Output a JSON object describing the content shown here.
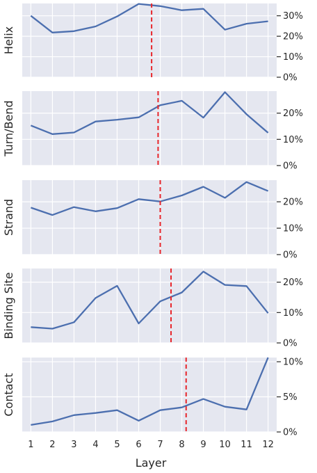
{
  "figure": {
    "xlabel": "Layer",
    "colors": {
      "panel_bg": "#e5e7f0",
      "grid": "#ffffff",
      "line": "#4c6faf",
      "marker": "#e8262b",
      "text": "#262626"
    }
  },
  "chart_data": [
    {
      "type": "line",
      "ylabel": "Helix",
      "x": [
        1,
        2,
        3,
        4,
        5,
        6,
        7,
        8,
        9,
        10,
        11,
        12
      ],
      "values": [
        30.0,
        21.8,
        22.5,
        24.8,
        29.7,
        35.8,
        34.7,
        32.7,
        33.4,
        23.2,
        26.1,
        27.3
      ],
      "ylim": [
        0,
        36
      ],
      "yticks": [
        0,
        10,
        20,
        30
      ],
      "ytick_labels": [
        "0%",
        "10%",
        "20%",
        "30%"
      ],
      "y_axis_side": "right",
      "grid": true,
      "vline": 6.6
    },
    {
      "type": "line",
      "ylabel": "Turn/Bend",
      "x": [
        1,
        2,
        3,
        4,
        5,
        6,
        7,
        8,
        9,
        10,
        11,
        12
      ],
      "values": [
        15.3,
        12.0,
        12.6,
        16.8,
        17.5,
        18.4,
        23.0,
        24.7,
        18.3,
        28.0,
        19.6,
        12.5
      ],
      "ylim": [
        0,
        28.4
      ],
      "yticks": [
        0,
        10,
        20
      ],
      "ytick_labels": [
        "0%",
        "10%",
        "20%"
      ],
      "y_axis_side": "right",
      "grid": true,
      "vline": 6.9
    },
    {
      "type": "line",
      "ylabel": "Strand",
      "x": [
        1,
        2,
        3,
        4,
        5,
        6,
        7,
        8,
        9,
        10,
        11,
        12
      ],
      "values": [
        17.8,
        15.0,
        18.0,
        16.4,
        17.6,
        21.0,
        20.1,
        22.4,
        25.7,
        21.5,
        27.5,
        24.1
      ],
      "ylim": [
        0,
        28.2
      ],
      "yticks": [
        0,
        10,
        20
      ],
      "ytick_labels": [
        "0%",
        "10%",
        "20%"
      ],
      "y_axis_side": "right",
      "grid": true,
      "vline": 7.0
    },
    {
      "type": "line",
      "ylabel": "Binding Site",
      "x": [
        1,
        2,
        3,
        4,
        5,
        6,
        7,
        8,
        9,
        10,
        11,
        12
      ],
      "values": [
        5.2,
        4.7,
        6.8,
        14.8,
        18.8,
        6.4,
        13.7,
        16.6,
        23.5,
        19.1,
        18.7,
        9.8
      ],
      "ylim": [
        0,
        24.5
      ],
      "yticks": [
        0,
        10,
        20
      ],
      "ytick_labels": [
        "0%",
        "10%",
        "20%"
      ],
      "y_axis_side": "right",
      "grid": true,
      "vline": 7.5
    },
    {
      "type": "line",
      "ylabel": "Contact",
      "x": [
        1,
        2,
        3,
        4,
        5,
        6,
        7,
        8,
        9,
        10,
        11,
        12
      ],
      "values": [
        1.0,
        1.5,
        2.4,
        2.7,
        3.1,
        1.6,
        3.1,
        3.5,
        4.7,
        3.6,
        3.2,
        10.6
      ],
      "ylim": [
        0,
        10.6
      ],
      "yticks": [
        0,
        5,
        10
      ],
      "ytick_labels": [
        "0%",
        "5%",
        "10%"
      ],
      "y_axis_side": "right",
      "grid": true,
      "vline": 8.2
    }
  ],
  "x_axis": {
    "ticks": [
      1,
      2,
      3,
      4,
      5,
      6,
      7,
      8,
      9,
      10,
      11,
      12
    ],
    "tick_labels": [
      "1",
      "2",
      "3",
      "4",
      "5",
      "6",
      "7",
      "8",
      "9",
      "10",
      "11",
      "12"
    ],
    "xlim": [
      0.6,
      12.4
    ]
  }
}
